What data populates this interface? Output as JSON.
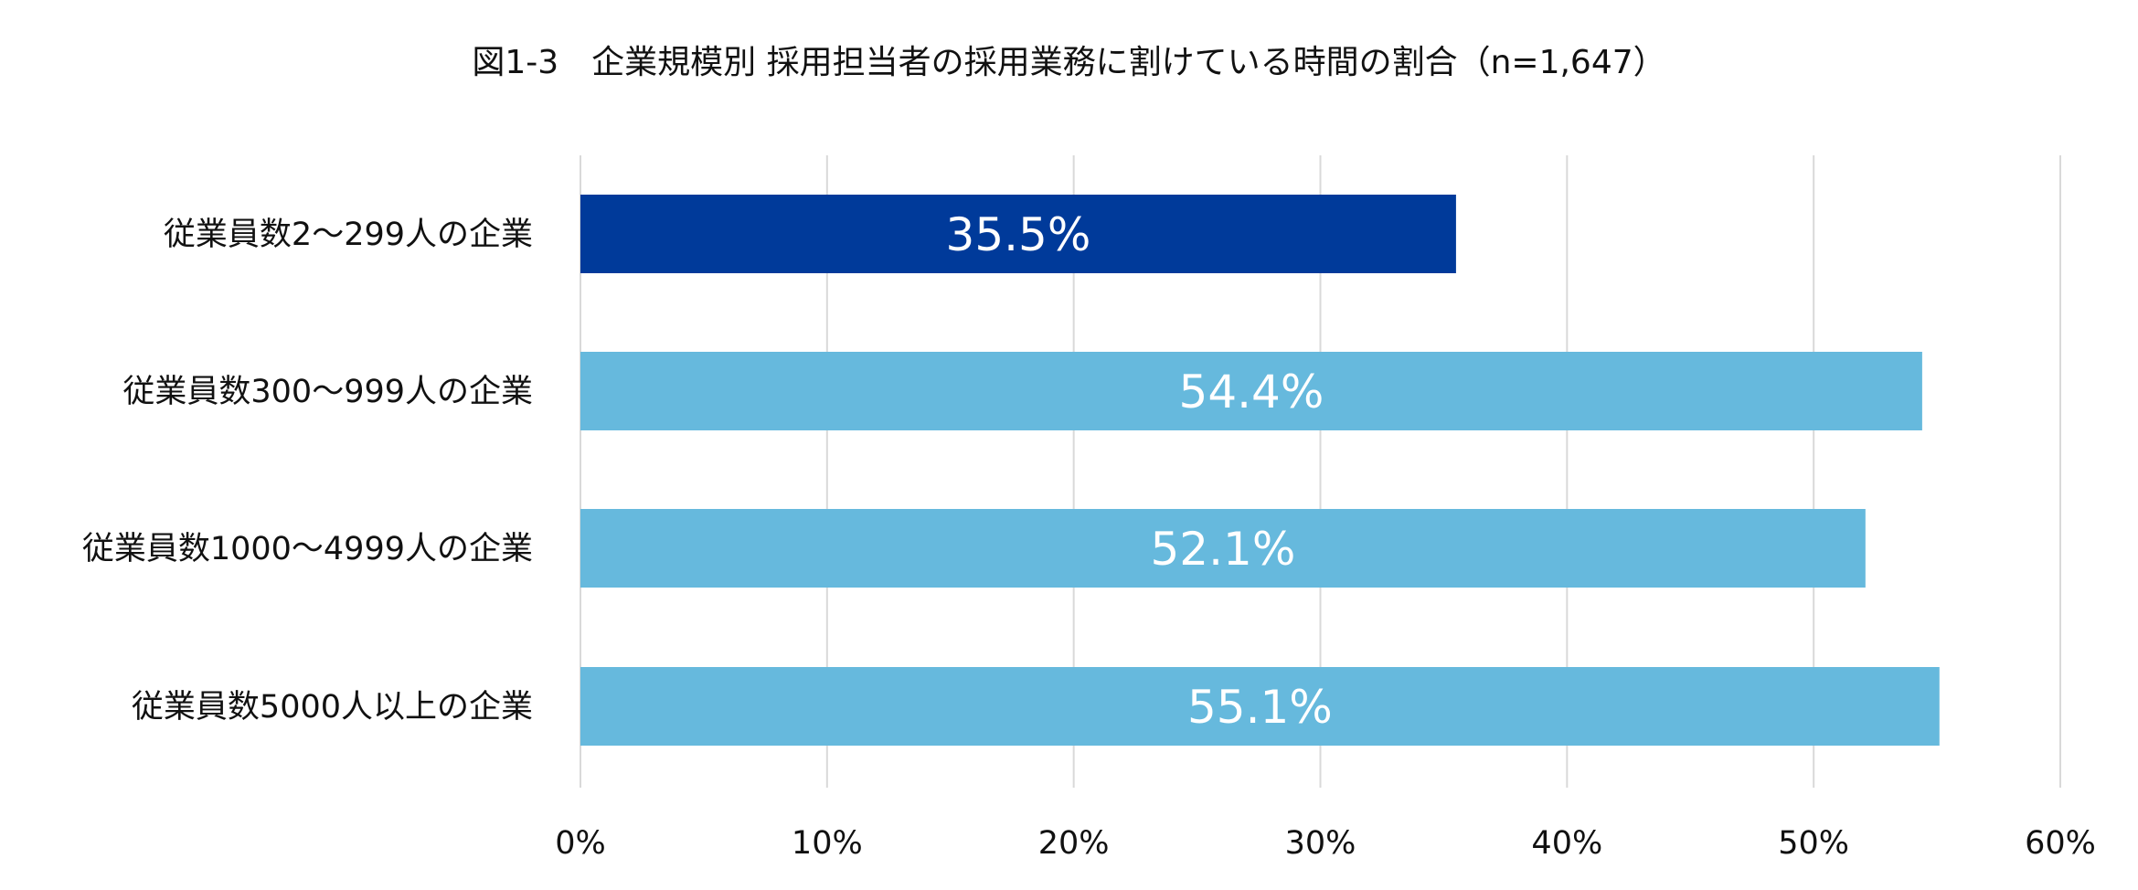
{
  "chart_data": {
    "type": "bar",
    "orientation": "horizontal",
    "title": "図1-3　企業規模別 採用担当者の採用業務に割けている時間の割合（n=1,647）",
    "categories": [
      "従業員数2～299人の企業",
      "従業員数300～999人の企業",
      "従業員数1000～4999人の企業",
      "従業員数5000人以上の企業"
    ],
    "values": [
      35.5,
      54.4,
      52.1,
      55.1
    ],
    "value_labels": [
      "35.5%",
      "54.4%",
      "52.1%",
      "55.1%"
    ],
    "bar_colors": [
      "#003a9a",
      "#66b9dd",
      "#66b9dd",
      "#66b9dd"
    ],
    "xlim": [
      0,
      60
    ],
    "ticks": [
      0,
      10,
      20,
      30,
      40,
      50,
      60
    ],
    "tick_labels": [
      "0%",
      "10%",
      "20%",
      "30%",
      "40%",
      "50%",
      "60%"
    ],
    "grid": true,
    "xlabel": "",
    "ylabel": ""
  }
}
